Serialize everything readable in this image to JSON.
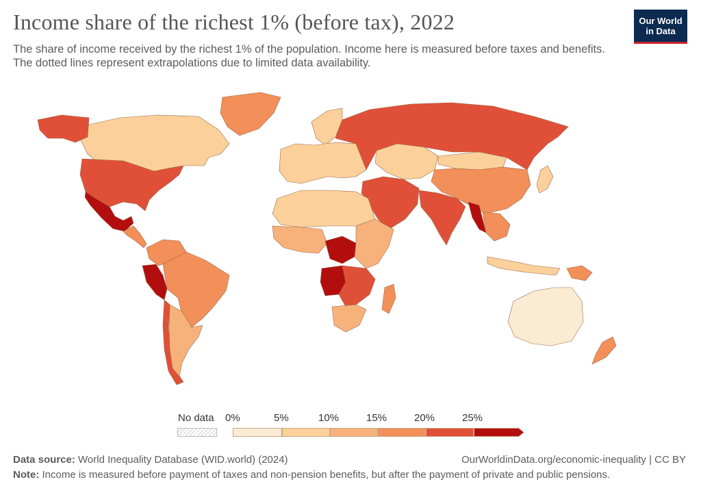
{
  "header": {
    "title": "Income share of the richest 1% (before tax), 2022",
    "subtitle": "The share of income received by the richest 1% of the population. Income here is measured before taxes and benefits. The dotted lines represent extrapolations due to limited data availability."
  },
  "logo": {
    "line1": "Our World",
    "line2": "in Data"
  },
  "legend": {
    "no_data": "No data",
    "ticks": [
      "0%",
      "5%",
      "10%",
      "15%",
      "20%",
      "25%"
    ],
    "colors": [
      "#fcebd3",
      "#fbd09b",
      "#f7b27c",
      "#f38f59",
      "#e05038",
      "#b20e0e"
    ],
    "no_data_color": "#e6e6e6"
  },
  "footer": {
    "source_label": "Data source:",
    "source_text": " World Inequality Database (WID.world) (2024)",
    "url": "OurWorldinData.org/economic-inequality | CC BY",
    "note_label": "Note:",
    "note_text": " Income is measured before payment of taxes and non-pension benefits, but after the payment of private and public pensions."
  },
  "regions": [
    {
      "name": "Canada",
      "color": "#fbd09b"
    },
    {
      "name": "United States",
      "color": "#e05038"
    },
    {
      "name": "Mexico",
      "color": "#b20e0e"
    },
    {
      "name": "Greenland",
      "color": "#f38f59"
    },
    {
      "name": "Central America",
      "color": "#f38f59"
    },
    {
      "name": "Colombia & Venezuela",
      "color": "#f38f59"
    },
    {
      "name": "Peru",
      "color": "#b20e0e"
    },
    {
      "name": "Brazil",
      "color": "#f38f59"
    },
    {
      "name": "Chile",
      "color": "#e05038"
    },
    {
      "name": "Argentina",
      "color": "#f7b27c"
    },
    {
      "name": "Russia",
      "color": "#e05038"
    },
    {
      "name": "Europe",
      "color": "#fbd09b"
    },
    {
      "name": "Scandinavia",
      "color": "#fbd09b"
    },
    {
      "name": "Middle East",
      "color": "#e05038"
    },
    {
      "name": "Central Asia",
      "color": "#fbd09b"
    },
    {
      "name": "China",
      "color": "#f38f59"
    },
    {
      "name": "Mongolia",
      "color": "#fbd09b"
    },
    {
      "name": "India",
      "color": "#e05038"
    },
    {
      "name": "Myanmar",
      "color": "#b20e0e"
    },
    {
      "name": "Southeast Asia",
      "color": "#f38f59"
    },
    {
      "name": "Indonesia",
      "color": "#fbd09b"
    },
    {
      "name": "North Africa",
      "color": "#fbd09b"
    },
    {
      "name": "West Africa",
      "color": "#f7b27c"
    },
    {
      "name": "Central Africa",
      "color": "#b20e0e"
    },
    {
      "name": "East Africa",
      "color": "#f7b27c"
    },
    {
      "name": "Angola",
      "color": "#b20e0e"
    },
    {
      "name": "Southern Africa",
      "color": "#e05038"
    },
    {
      "name": "South Africa",
      "color": "#f7b27c"
    },
    {
      "name": "Madagascar",
      "color": "#f38f59"
    },
    {
      "name": "Australia",
      "color": "#fcebd3"
    },
    {
      "name": "New Zealand",
      "color": "#f38f59"
    },
    {
      "name": "Japan",
      "color": "#fbd09b"
    },
    {
      "name": "Papua New Guinea",
      "color": "#f38f59"
    }
  ]
}
